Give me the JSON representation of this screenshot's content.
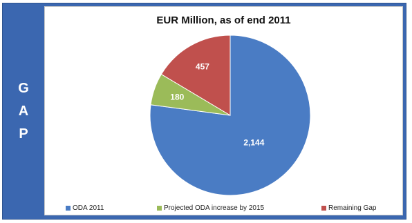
{
  "sidebar": {
    "letters": [
      "G",
      "A",
      "P"
    ]
  },
  "chart_data": {
    "type": "pie",
    "title": "EUR Million, as of end 2011",
    "slices": [
      {
        "label": "ODA 2011",
        "value": 2144,
        "display": "2,144",
        "color": "#4a7cc4"
      },
      {
        "label": "Projected ODA increase by 2015",
        "value": 180,
        "display": "180",
        "color": "#9bbb59"
      },
      {
        "label": "Remaining Gap",
        "value": 457,
        "display": "457",
        "color": "#c0504d"
      }
    ],
    "legend_position": "bottom"
  }
}
